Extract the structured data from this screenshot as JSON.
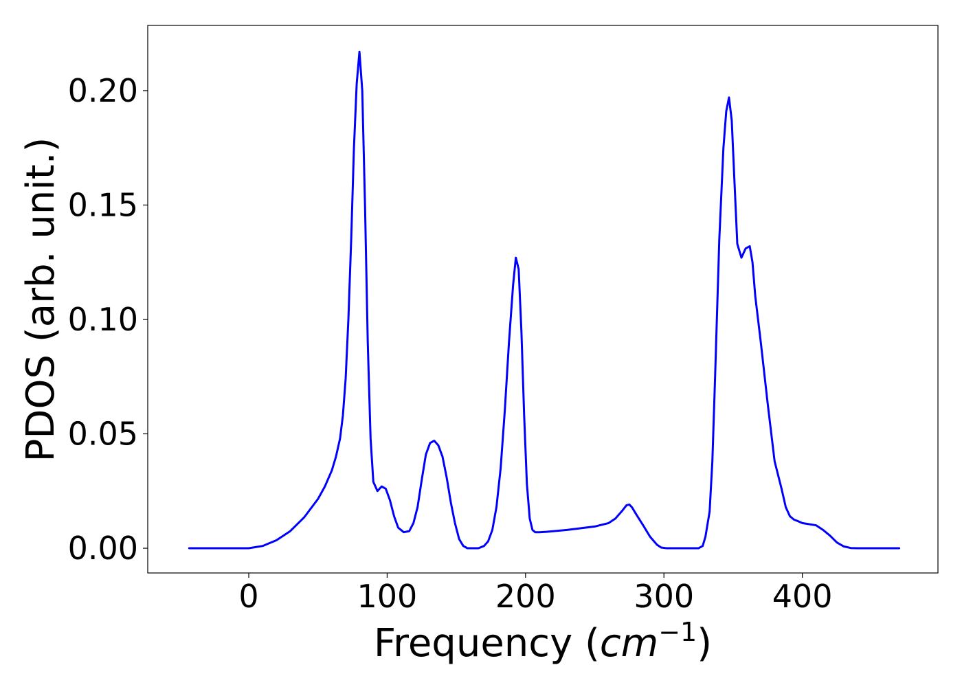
{
  "chart_data": {
    "type": "line",
    "title": "",
    "xlabel_main": "Frequency (",
    "xlabel_unit": "cm",
    "xlabel_exp": "−1",
    "xlabel_close": ")",
    "ylabel": "PDOS (arb. unit.)",
    "xlim": [
      -73,
      498
    ],
    "ylim": [
      -0.0108,
      0.2285
    ],
    "x_ticks": [
      0,
      100,
      200,
      300,
      400
    ],
    "x_tick_labels": [
      "0",
      "100",
      "200",
      "300",
      "400"
    ],
    "y_ticks": [
      0.0,
      0.05,
      0.1,
      0.15,
      0.2
    ],
    "y_tick_labels": [
      "0.00",
      "0.05",
      "0.10",
      "0.15",
      "0.20"
    ],
    "grid": false,
    "series": [
      {
        "color": "#0000ff",
        "x": [
          -43,
          -20,
          0,
          10,
          20,
          30,
          40,
          50,
          55,
          60,
          63,
          66,
          68,
          70,
          72,
          74,
          76,
          78,
          80,
          82,
          84,
          86,
          88,
          90,
          93,
          96,
          99,
          102,
          105,
          108,
          112,
          116,
          119,
          122,
          125,
          128,
          131,
          134,
          137,
          140,
          143,
          146,
          149,
          152,
          155,
          158,
          162,
          166,
          170,
          173,
          176,
          179,
          182,
          185,
          188,
          191,
          193,
          195,
          197,
          199,
          201,
          203,
          205,
          207,
          210,
          215,
          230,
          250,
          260,
          265,
          270,
          273,
          275,
          277,
          280,
          285,
          290,
          295,
          298,
          302,
          310,
          320,
          325,
          328,
          330,
          333,
          335,
          337,
          340,
          343,
          345,
          347,
          349,
          351,
          353,
          356,
          359,
          362,
          364,
          366,
          370,
          375,
          380,
          385,
          388,
          391,
          394,
          397,
          400,
          410,
          415,
          420,
          425,
          430,
          435,
          440,
          470
        ],
        "y": [
          0,
          0,
          0,
          0.001,
          0.0035,
          0.0075,
          0.0135,
          0.0215,
          0.027,
          0.034,
          0.04,
          0.048,
          0.058,
          0.074,
          0.1,
          0.135,
          0.175,
          0.203,
          0.217,
          0.2,
          0.15,
          0.09,
          0.048,
          0.029,
          0.025,
          0.027,
          0.026,
          0.021,
          0.014,
          0.009,
          0.007,
          0.0075,
          0.011,
          0.018,
          0.03,
          0.041,
          0.046,
          0.047,
          0.045,
          0.04,
          0.031,
          0.02,
          0.011,
          0.004,
          0.001,
          0.0,
          0.0,
          0.0,
          0.001,
          0.003,
          0.008,
          0.018,
          0.035,
          0.06,
          0.09,
          0.115,
          0.127,
          0.122,
          0.095,
          0.058,
          0.028,
          0.013,
          0.008,
          0.007,
          0.007,
          0.0072,
          0.008,
          0.0095,
          0.011,
          0.013,
          0.0165,
          0.0188,
          0.0191,
          0.0178,
          0.0148,
          0.01,
          0.005,
          0.0015,
          0.0003,
          0.0,
          0.0,
          0.0,
          0.0,
          0.001,
          0.005,
          0.016,
          0.038,
          0.075,
          0.135,
          0.175,
          0.191,
          0.197,
          0.187,
          0.16,
          0.133,
          0.127,
          0.131,
          0.132,
          0.125,
          0.11,
          0.09,
          0.063,
          0.038,
          0.026,
          0.018,
          0.014,
          0.0125,
          0.0118,
          0.011,
          0.01,
          0.008,
          0.0055,
          0.0025,
          0.0008,
          0.0001,
          0.0,
          0.0
        ]
      }
    ]
  }
}
